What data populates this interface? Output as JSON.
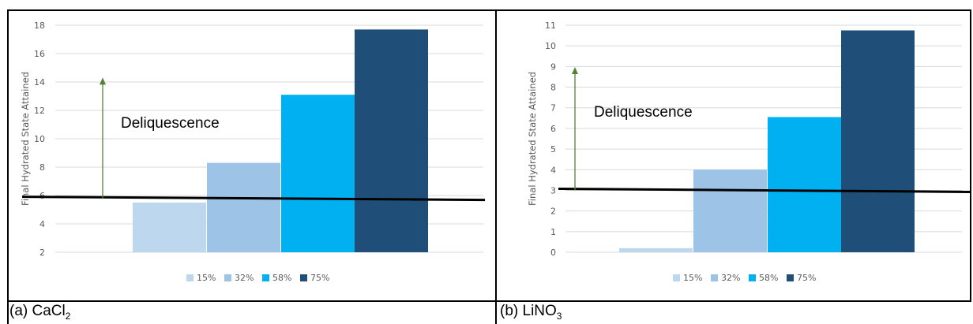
{
  "captions": {
    "a": {
      "prefix": "(a) CaCl",
      "sub": "2"
    },
    "b": {
      "prefix": "(b) LiNO",
      "sub": "3"
    }
  },
  "chart_data": [
    {
      "type": "bar",
      "ylabel": "Final Hydrated State Attained",
      "categories": [
        "15%",
        "32%",
        "58%",
        "75%"
      ],
      "values": [
        5.5,
        8.3,
        13.1,
        17.7
      ],
      "ylim": [
        2,
        18
      ],
      "yticks": [
        2,
        4,
        6,
        8,
        10,
        12,
        14,
        16,
        18
      ],
      "threshold": 5.8,
      "arrow_top": 14.2,
      "annotation": "Deliquescence",
      "colors": [
        "#bdd7ee",
        "#9dc3e6",
        "#00b0f0",
        "#1f4e79"
      ],
      "grid": true,
      "legend_position": "bottom"
    },
    {
      "type": "bar",
      "ylabel": "Final Hydrated State Attained",
      "categories": [
        "15%",
        "32%",
        "58%",
        "75%"
      ],
      "values": [
        0.2,
        4.0,
        6.55,
        10.75
      ],
      "ylim": [
        0,
        11
      ],
      "yticks": [
        0,
        1,
        2,
        3,
        4,
        5,
        6,
        7,
        8,
        9,
        10,
        11
      ],
      "threshold": 3.0,
      "arrow_top": 8.9,
      "annotation": "Deliquescence",
      "colors": [
        "#bdd7ee",
        "#9dc3e6",
        "#00b0f0",
        "#1f4e79"
      ],
      "grid": true,
      "legend_position": "bottom"
    }
  ]
}
